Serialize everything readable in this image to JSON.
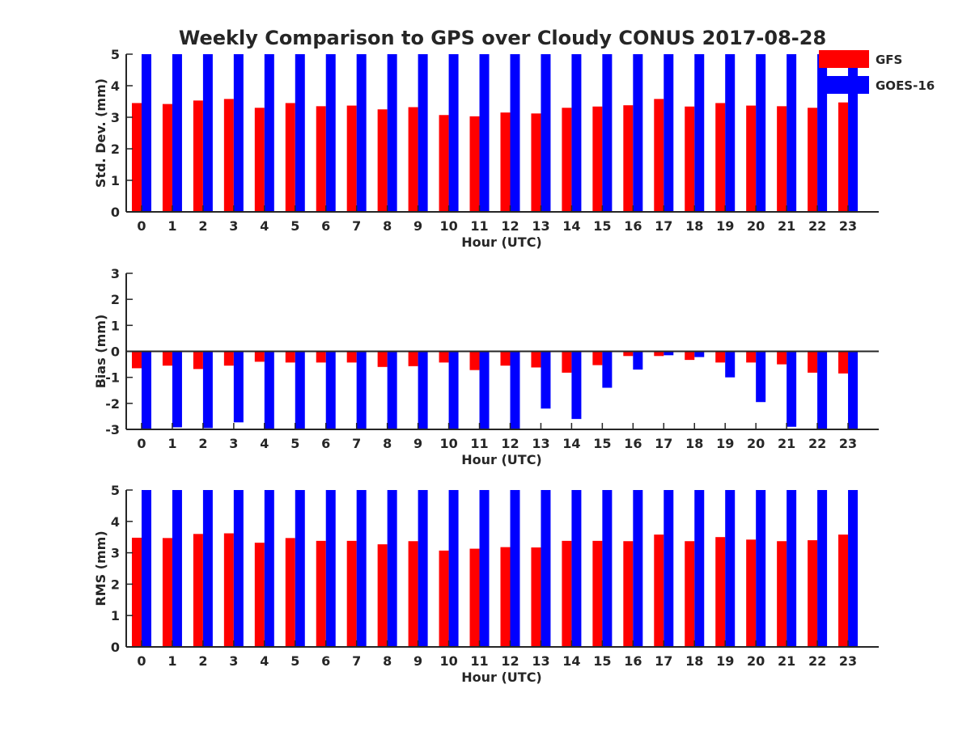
{
  "title": "Weekly Comparison to GPS over Cloudy CONUS 2017-08-28",
  "legend": {
    "placement": "top-right",
    "entries": [
      {
        "label": "GFS",
        "color": "#ff0000"
      },
      {
        "label": "GOES-16",
        "color": "#0000ff"
      }
    ]
  },
  "chart_data": [
    {
      "type": "bar",
      "xlabel": "Hour (UTC)",
      "ylabel": "Std. Dev. (mm)",
      "ylim": [
        0,
        5
      ],
      "yticks": [
        0,
        1,
        2,
        3,
        4,
        5
      ],
      "grid": false,
      "categories": [
        "0",
        "1",
        "2",
        "3",
        "4",
        "5",
        "6",
        "7",
        "8",
        "9",
        "10",
        "11",
        "12",
        "13",
        "14",
        "15",
        "16",
        "17",
        "18",
        "19",
        "20",
        "21",
        "22",
        "23"
      ],
      "series": [
        {
          "name": "GFS",
          "color": "#ff0000",
          "values": [
            3.45,
            3.42,
            3.53,
            3.58,
            3.3,
            3.45,
            3.35,
            3.37,
            3.25,
            3.32,
            3.07,
            3.03,
            3.15,
            3.12,
            3.3,
            3.34,
            3.38,
            3.58,
            3.34,
            3.45,
            3.37,
            3.35,
            3.3,
            3.47
          ]
        },
        {
          "name": "GOES-16",
          "color": "#0000ff",
          "values": [
            5,
            5,
            5,
            5,
            5,
            5,
            5,
            5,
            5,
            5,
            5,
            5,
            5,
            5,
            5,
            5,
            5,
            5,
            5,
            5,
            5,
            5,
            5,
            5
          ]
        }
      ]
    },
    {
      "type": "bar",
      "xlabel": "Hour (UTC)",
      "ylabel": "Bias (mm)",
      "ylim": [
        -3,
        3
      ],
      "yticks": [
        -3,
        -2,
        -1,
        0,
        1,
        2,
        3
      ],
      "grid": false,
      "zero_line": true,
      "categories": [
        "0",
        "1",
        "2",
        "3",
        "4",
        "5",
        "6",
        "7",
        "8",
        "9",
        "10",
        "11",
        "12",
        "13",
        "14",
        "15",
        "16",
        "17",
        "18",
        "19",
        "20",
        "21",
        "22",
        "23"
      ],
      "series": [
        {
          "name": "GFS",
          "color": "#ff0000",
          "values": [
            -0.65,
            -0.55,
            -0.68,
            -0.55,
            -0.4,
            -0.43,
            -0.43,
            -0.43,
            -0.6,
            -0.57,
            -0.43,
            -0.72,
            -0.55,
            -0.62,
            -0.82,
            -0.53,
            -0.18,
            -0.18,
            -0.33,
            -0.43,
            -0.43,
            -0.5,
            -0.82,
            -0.85
          ]
        },
        {
          "name": "GOES-16",
          "color": "#0000ff",
          "values": [
            -3,
            -2.92,
            -2.95,
            -2.73,
            -3,
            -3,
            -3,
            -3,
            -3,
            -3,
            -3,
            -3,
            -3,
            -2.2,
            -2.6,
            -1.4,
            -0.7,
            -0.15,
            -0.22,
            -1.0,
            -1.95,
            -2.9,
            -3,
            -3
          ]
        }
      ]
    },
    {
      "type": "bar",
      "xlabel": "Hour (UTC)",
      "ylabel": "RMS (mm)",
      "ylim": [
        0,
        5
      ],
      "yticks": [
        0,
        1,
        2,
        3,
        4,
        5
      ],
      "grid": false,
      "categories": [
        "0",
        "1",
        "2",
        "3",
        "4",
        "5",
        "6",
        "7",
        "8",
        "9",
        "10",
        "11",
        "12",
        "13",
        "14",
        "15",
        "16",
        "17",
        "18",
        "19",
        "20",
        "21",
        "22",
        "23"
      ],
      "series": [
        {
          "name": "GFS",
          "color": "#ff0000",
          "values": [
            3.48,
            3.47,
            3.6,
            3.62,
            3.32,
            3.47,
            3.38,
            3.38,
            3.27,
            3.37,
            3.07,
            3.13,
            3.18,
            3.17,
            3.38,
            3.38,
            3.37,
            3.58,
            3.37,
            3.5,
            3.42,
            3.37,
            3.4,
            3.58
          ]
        },
        {
          "name": "GOES-16",
          "color": "#0000ff",
          "values": [
            5,
            5,
            5,
            5,
            5,
            5,
            5,
            5,
            5,
            5,
            5,
            5,
            5,
            5,
            5,
            5,
            5,
            5,
            5,
            5,
            5,
            5,
            5,
            5
          ]
        }
      ]
    }
  ]
}
